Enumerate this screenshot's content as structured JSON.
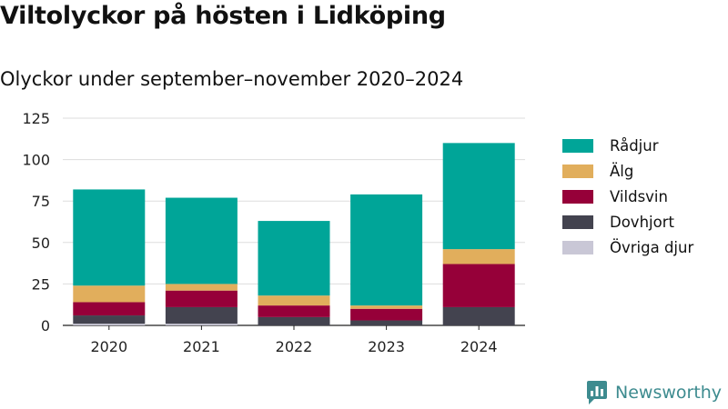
{
  "header": {
    "title": "Viltolyckor på hösten i Lidköping",
    "subtitle": "Olyckor under september–november 2020–2024"
  },
  "chart_data": {
    "type": "bar",
    "stacked": true,
    "title": "Viltolyckor på hösten i Lidköping",
    "subtitle": "Olyckor under september–november 2020–2024",
    "categories": [
      "2020",
      "2021",
      "2022",
      "2023",
      "2024"
    ],
    "ylim": [
      0,
      125
    ],
    "yticks": [
      0,
      25,
      50,
      75,
      100,
      125
    ],
    "grid": true,
    "legend_position": "right",
    "series": [
      {
        "name": "Övriga djur",
        "color": "#c9c7d6",
        "values": [
          1,
          1,
          0,
          0,
          0
        ]
      },
      {
        "name": "Dovhjort",
        "color": "#43434f",
        "values": [
          5,
          10,
          5,
          3,
          11
        ]
      },
      {
        "name": "Vildsvin",
        "color": "#960039",
        "values": [
          8,
          10,
          7,
          7,
          26
        ]
      },
      {
        "name": "Älg",
        "color": "#e1ae5c",
        "values": [
          10,
          4,
          6,
          2,
          9
        ]
      },
      {
        "name": "Rådjur",
        "color": "#00a598",
        "values": [
          58,
          52,
          45,
          67,
          64
        ]
      }
    ],
    "legend_order": [
      "Rådjur",
      "Älg",
      "Vildsvin",
      "Dovhjort",
      "Övriga djur"
    ]
  },
  "brand": {
    "name": "Newsworthy",
    "color": "#3d8b8f"
  }
}
